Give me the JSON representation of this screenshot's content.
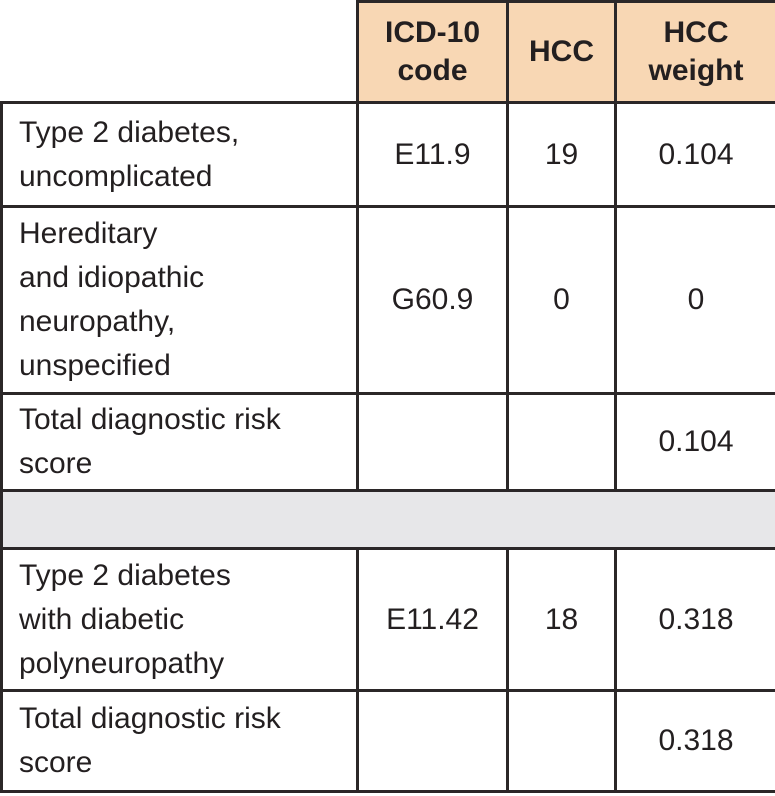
{
  "table": {
    "header": {
      "diagnosis_label": "",
      "icd10_label": "ICD-10\ncode",
      "hcc_label": "HCC",
      "hcc_weight_label": "HCC\nweight"
    },
    "rows": [
      {
        "diagnosis": "Type 2 diabetes,\nuncomplicated",
        "icd10": "E11.9",
        "hcc": "19",
        "hcc_weight": "0.104"
      },
      {
        "diagnosis": "Hereditary\nand idiopathic\nneuropathy,\nunspecified",
        "icd10": "G60.9",
        "hcc": "0",
        "hcc_weight": "0"
      },
      {
        "diagnosis": "Total diagnostic risk\nscore",
        "icd10": "",
        "hcc": "",
        "hcc_weight": "0.104"
      },
      {
        "diagnosis": "Type 2 diabetes\nwith diabetic\npolyneuropathy",
        "icd10": "E11.42",
        "hcc": "18",
        "hcc_weight": "0.318"
      },
      {
        "diagnosis": "Total diagnostic risk\nscore",
        "icd10": "",
        "hcc": "",
        "hcc_weight": "0.318"
      }
    ],
    "colors": {
      "header_bg": "#f8d7b4",
      "separator_bg": "#e7e7e9",
      "border": "#2b2728",
      "text": "#231f20"
    }
  }
}
